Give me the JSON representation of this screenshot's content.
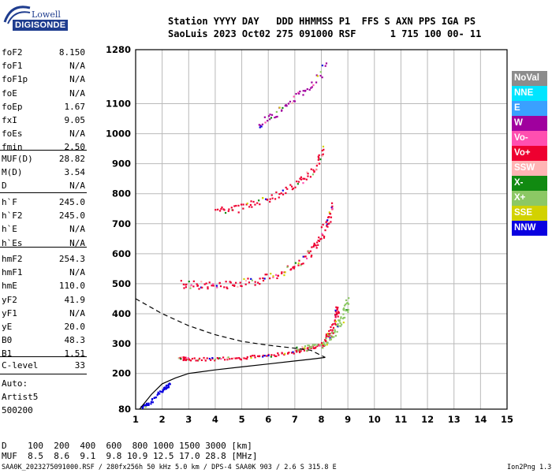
{
  "logo": {
    "top": "Lowell",
    "bottom": "DIGISONDE"
  },
  "header": {
    "line1": "Station YYYY DAY   DDD HHMMSS P1  FFS S AXN PPS IGA PS",
    "line2": "SaoLuis 2023 Oct02 275 091000 RSF      1 715 100 00- 11"
  },
  "params": {
    "g1": [
      {
        "k": "foF2",
        "v": "8.150"
      },
      {
        "k": "foF1",
        "v": "N/A"
      },
      {
        "k": "foF1p",
        "v": "N/A"
      },
      {
        "k": "foE",
        "v": "N/A"
      },
      {
        "k": "foEp",
        "v": "1.67"
      },
      {
        "k": "fxI",
        "v": "9.05"
      },
      {
        "k": "foEs",
        "v": "N/A"
      },
      {
        "k": "fmin",
        "v": "2.50"
      }
    ],
    "g2": [
      {
        "k": "MUF(D)",
        "v": "28.82"
      },
      {
        "k": "M(D)",
        "v": "3.54"
      },
      {
        "k": "D",
        "v": "N/A"
      }
    ],
    "g3": [
      {
        "k": "h`F",
        "v": "245.0"
      },
      {
        "k": "h`F2",
        "v": "245.0"
      },
      {
        "k": "h`E",
        "v": "N/A"
      },
      {
        "k": "h`Es",
        "v": "N/A"
      }
    ],
    "g4": [
      {
        "k": "hmF2",
        "v": "254.3"
      },
      {
        "k": "hmF1",
        "v": "N/A"
      },
      {
        "k": "hmE",
        "v": "110.0"
      },
      {
        "k": "yF2",
        "v": "41.9"
      },
      {
        "k": "yF1",
        "v": "N/A"
      },
      {
        "k": "yE",
        "v": "20.0"
      },
      {
        "k": "B0",
        "v": "48.3"
      },
      {
        "k": "B1",
        "v": "1.51"
      }
    ],
    "g5": [
      {
        "k": "C-level",
        "v": "33"
      }
    ]
  },
  "auto": {
    "line1": "Auto:",
    "line2": "Artist5",
    "line3": "500200"
  },
  "dmuf": {
    "d": "D    100  200  400  600  800 1000 1500 3000 [km]",
    "muf": "MUF  8.5  8.6  9.1  9.8 10.9 12.5 17.0 28.8 [MHz]"
  },
  "footer": {
    "left": "SAA0K_2023275091000.RSF / 280fx256h 50 kHz 5.0 km / DPS-4 SAA0K 903 / 2.6 S 315.8 E",
    "right": "Ion2Png 1.3.17"
  },
  "legend": [
    {
      "label": "NoVal",
      "bg": "#8c8c8c",
      "fg": "#ffffff"
    },
    {
      "label": "NNE",
      "bg": "#00e5ff",
      "fg": "#ffffff"
    },
    {
      "label": "E",
      "bg": "#3aa0ff",
      "fg": "#ffffff"
    },
    {
      "label": "W",
      "bg": "#a0009e",
      "fg": "#ffffff"
    },
    {
      "label": "Vo-",
      "bg": "#ff4fb0",
      "fg": "#ffffff"
    },
    {
      "label": "Vo+",
      "bg": "#ee0030",
      "fg": "#ffffff"
    },
    {
      "label": "SSW",
      "bg": "#ffb4b4",
      "fg": "#ffffff"
    },
    {
      "label": "X-",
      "bg": "#118a11",
      "fg": "#ffffff"
    },
    {
      "label": "X+",
      "bg": "#8cc864",
      "fg": "#ffffff"
    },
    {
      "label": "SSE",
      "bg": "#d2d200",
      "fg": "#ffffff"
    },
    {
      "label": "NNW",
      "bg": "#0a00e0",
      "fg": "#ffffff"
    }
  ],
  "chart_data": {
    "type": "scatter",
    "title": "",
    "xlabel": "",
    "ylabel": "",
    "xlim": [
      1,
      15
    ],
    "ylim": [
      80,
      1280
    ],
    "xticks": [
      1,
      2,
      3,
      4,
      5,
      6,
      7,
      8,
      9,
      10,
      11,
      12,
      13,
      14,
      15
    ],
    "yticks": [
      80,
      200,
      300,
      400,
      500,
      600,
      700,
      800,
      900,
      1000,
      1100,
      1280
    ],
    "y_scale": "nonlinear-stretched-below-300",
    "grid": true,
    "traces": [
      {
        "name": "o-trace F2",
        "color": "#ee0030",
        "points": [
          [
            2.6,
            255
          ],
          [
            3,
            250
          ],
          [
            4,
            250
          ],
          [
            5,
            255
          ],
          [
            6,
            262
          ],
          [
            7,
            275
          ],
          [
            7.5,
            285
          ],
          [
            8,
            300
          ],
          [
            8.3,
            330
          ],
          [
            8.5,
            380
          ],
          [
            8.6,
            420
          ]
        ]
      },
      {
        "name": "x-trace F2",
        "color": "#8cc864",
        "points": [
          [
            7,
            285
          ],
          [
            8,
            300
          ],
          [
            8.5,
            340
          ],
          [
            8.8,
            400
          ],
          [
            9,
            440
          ]
        ]
      },
      {
        "name": "2nd hop",
        "color": "#ee0030",
        "points": [
          [
            2.7,
            500
          ],
          [
            3.5,
            497
          ],
          [
            4.5,
            500
          ],
          [
            5.5,
            510
          ],
          [
            6.5,
            540
          ],
          [
            7.3,
            580
          ],
          [
            7.8,
            630
          ],
          [
            8.2,
            700
          ],
          [
            8.4,
            760
          ]
        ]
      },
      {
        "name": "3rd hop",
        "color": "#ee0030",
        "points": [
          [
            4,
            745
          ],
          [
            5,
            755
          ],
          [
            6,
            785
          ],
          [
            7,
            830
          ],
          [
            7.7,
            880
          ],
          [
            8.1,
            960
          ]
        ]
      },
      {
        "name": "4th hop",
        "color": "#a0009e",
        "points": [
          [
            5.6,
            1030
          ],
          [
            6.4,
            1080
          ],
          [
            7.3,
            1140
          ],
          [
            8.2,
            1220
          ]
        ]
      },
      {
        "name": "E trace",
        "color": "#0a00e0",
        "points": [
          [
            1.2,
            88
          ],
          [
            1.5,
            100
          ],
          [
            2,
            150
          ],
          [
            2.3,
            165
          ]
        ]
      }
    ],
    "profile": [
      [
        1.15,
        80
      ],
      [
        1.6,
        130
      ],
      [
        2,
        165
      ],
      [
        2.5,
        185
      ],
      [
        3,
        200
      ],
      [
        4,
        212
      ],
      [
        5,
        222
      ],
      [
        6,
        232
      ],
      [
        7,
        242
      ],
      [
        7.8,
        250
      ],
      [
        8.15,
        254
      ]
    ],
    "profile_dashed": [
      [
        1,
        450
      ],
      [
        2,
        400
      ],
      [
        3,
        360
      ],
      [
        4,
        330
      ],
      [
        5,
        308
      ],
      [
        6,
        295
      ],
      [
        7,
        285
      ],
      [
        7.6,
        278
      ],
      [
        8.15,
        254
      ]
    ]
  }
}
